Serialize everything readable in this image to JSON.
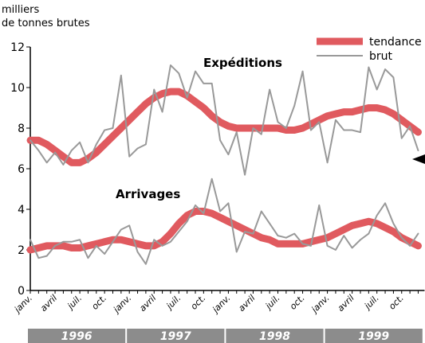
{
  "chart_data": {
    "type": "line",
    "ylabel": [
      "milliers",
      "de tonnes brutes"
    ],
    "categories": [
      "janv.",
      null,
      null,
      "avril",
      null,
      null,
      "juil.",
      null,
      null,
      "oct.",
      null,
      null,
      "janv.",
      null,
      null,
      "avril",
      null,
      null,
      "juil.",
      null,
      null,
      "oct.",
      null,
      null,
      "janv.",
      null,
      null,
      "avril",
      null,
      null,
      "juil.",
      null,
      null,
      "oct.",
      null,
      null,
      "janv.",
      null,
      null,
      "avril",
      null,
      null,
      "juil.",
      null,
      null,
      "oct.",
      null,
      null
    ],
    "years": [
      "1996",
      "1997",
      "1998",
      "1999"
    ],
    "ylim": [
      0,
      12
    ],
    "yticks": [
      0,
      2,
      4,
      6,
      8,
      10,
      12
    ],
    "groups": [
      {
        "name": "Expéditions",
        "series": [
          {
            "name": "tendance",
            "color": "#e05a5f",
            "values": [
              7.4,
              7.4,
              7.2,
              6.9,
              6.6,
              6.3,
              6.3,
              6.5,
              6.8,
              7.2,
              7.6,
              8.0,
              8.4,
              8.8,
              9.2,
              9.5,
              9.7,
              9.8,
              9.8,
              9.6,
              9.3,
              9.0,
              8.6,
              8.3,
              8.1,
              8.0,
              8.0,
              8.0,
              8.0,
              8.0,
              8.0,
              7.9,
              7.9,
              8.0,
              8.2,
              8.4,
              8.6,
              8.7,
              8.8,
              8.8,
              8.9,
              9.0,
              9.0,
              8.9,
              8.7,
              8.4,
              8.1,
              7.8
            ]
          },
          {
            "name": "brut",
            "color": "#999999",
            "values": [
              7.4,
              6.9,
              6.3,
              6.8,
              6.2,
              6.9,
              7.3,
              6.3,
              7.2,
              7.9,
              8.0,
              10.6,
              6.6,
              7.0,
              7.2,
              9.9,
              8.8,
              11.1,
              10.7,
              9.5,
              10.8,
              10.2,
              10.2,
              7.4,
              6.7,
              7.8,
              5.7,
              8.0,
              7.7,
              9.9,
              8.3,
              8.0,
              9.1,
              10.8,
              7.9,
              8.3,
              6.3,
              8.4,
              7.9,
              7.9,
              7.8,
              11.0,
              9.9,
              10.9,
              10.5,
              7.5,
              8.1,
              6.9
            ]
          }
        ]
      },
      {
        "name": "Arrivages",
        "series": [
          {
            "name": "tendance",
            "color": "#e05a5f",
            "values": [
              2.0,
              2.1,
              2.2,
              2.2,
              2.2,
              2.1,
              2.1,
              2.2,
              2.3,
              2.4,
              2.5,
              2.5,
              2.4,
              2.3,
              2.2,
              2.2,
              2.4,
              2.8,
              3.3,
              3.7,
              3.9,
              3.9,
              3.8,
              3.6,
              3.4,
              3.2,
              3.0,
              2.8,
              2.6,
              2.5,
              2.3,
              2.3,
              2.3,
              2.3,
              2.4,
              2.5,
              2.6,
              2.8,
              3.0,
              3.2,
              3.3,
              3.4,
              3.3,
              3.1,
              2.9,
              2.6,
              2.4,
              2.2
            ]
          },
          {
            "name": "brut",
            "color": "#999999",
            "values": [
              2.5,
              1.6,
              1.7,
              2.2,
              2.4,
              2.4,
              2.5,
              1.6,
              2.2,
              1.8,
              2.4,
              3.0,
              3.2,
              1.9,
              1.3,
              2.5,
              2.2,
              2.4,
              2.9,
              3.4,
              4.2,
              3.8,
              5.5,
              3.9,
              4.3,
              1.9,
              2.9,
              2.8,
              3.9,
              3.3,
              2.7,
              2.6,
              2.8,
              2.3,
              2.2,
              4.2,
              2.2,
              2.0,
              2.7,
              2.1,
              2.5,
              2.8,
              3.7,
              4.3,
              3.3,
              2.6,
              2.2,
              2.8
            ]
          }
        ]
      }
    ]
  }
}
